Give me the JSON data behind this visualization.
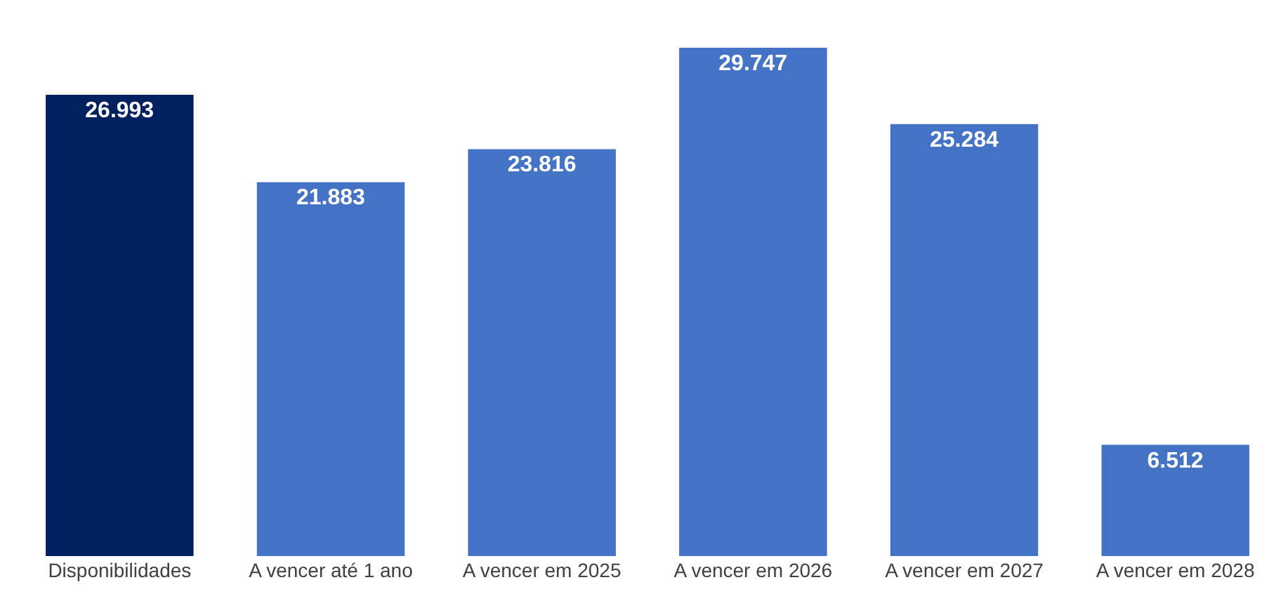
{
  "chart_data": {
    "type": "bar",
    "categories": [
      "Disponibilidades",
      "A vencer até 1 ano",
      "A vencer em 2025",
      "A vencer em 2026",
      "A vencer em 2027",
      "A vencer em 2028"
    ],
    "values": [
      26993,
      21883,
      23816,
      29747,
      25284,
      6512
    ],
    "value_labels": [
      "26.993",
      "21.883",
      "23.816",
      "29.747",
      "25.284",
      "6.512"
    ],
    "colors": [
      "#002060",
      "#4472c4",
      "#4472c4",
      "#4472c4",
      "#4472c4",
      "#4472c4"
    ],
    "grid": false,
    "legend": false
  }
}
